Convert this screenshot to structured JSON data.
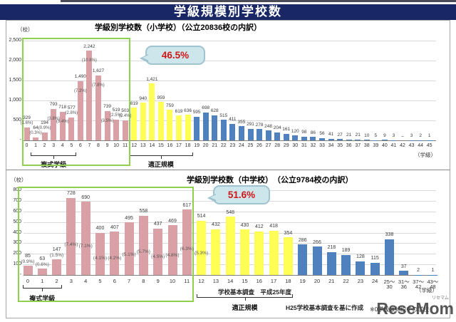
{
  "header": {
    "title": "学級規模別学校数"
  },
  "colors": {
    "pink": "#d9a0a5",
    "yellow": "#ffff55",
    "blue": "#4e81bd",
    "green_box": "#8fd14f",
    "callout_bg": "#cde6ec",
    "callout_text": "#d21616",
    "titlebar_bg": "#1a2766"
  },
  "watermark": {
    "brand": "ReseMom",
    "kana": "リセマム",
    "note": "※0学級は休校中の学校"
  },
  "chart_data": [
    {
      "type": "bar",
      "title": "学級別学校数（小学校）",
      "subtitle": "（公立20836校の内訳）",
      "y_unit": "（校）",
      "x_unit": "（学級）",
      "callout": "46.5%",
      "ylim": [
        0,
        2500
      ],
      "yticks": [
        {
          "v": 2500,
          "label": "2,500"
        },
        {
          "v": 2000,
          "label": "2,000"
        },
        {
          "v": 1500,
          "label": "1,500"
        },
        {
          "v": 1000,
          "label": "1,000"
        },
        {
          "v": 500,
          "label": "500"
        },
        {
          "v": 0,
          "label": "-"
        }
      ],
      "categories": [
        "0",
        "1",
        "2",
        "3",
        "4",
        "5",
        "6",
        "7",
        "8",
        "9",
        "10",
        "11",
        "12",
        "13",
        "14",
        "15",
        "16",
        "17",
        "18",
        "19",
        "20",
        "21",
        "22",
        "23",
        "24",
        "25",
        "26",
        "27",
        "28",
        "29",
        "30",
        "31",
        "32",
        "33",
        "34",
        "35",
        "36",
        "37",
        "38",
        "39",
        "40",
        "41",
        "42",
        "43",
        "44",
        "45"
      ],
      "values": [
        329,
        64,
        194,
        793,
        718,
        577,
        1490,
        2242,
        1627,
        739,
        519,
        503,
        819,
        940,
        1421,
        959,
        759,
        619,
        636,
        595,
        698,
        628,
        515,
        411,
        355,
        291,
        278,
        248,
        204,
        161,
        120,
        98,
        86,
        56,
        41,
        27,
        21,
        21,
        10,
        5,
        9,
        3,
        0,
        3,
        2,
        1
      ],
      "bar_labels": [
        "329",
        "64",
        "194",
        "793",
        "718",
        "577",
        "1,490",
        "2,242",
        "1,627",
        "739",
        "519",
        "503",
        "819",
        "940",
        "1,421",
        "959",
        "759",
        "619",
        "636",
        "595",
        "698",
        "628",
        "515",
        "411",
        "355",
        "291",
        "278",
        "248",
        "204",
        "161",
        "120",
        "98",
        "86",
        "56",
        "41",
        "27",
        "21",
        "21",
        "10",
        "5",
        "9",
        "3",
        "–",
        "3",
        "2",
        "1"
      ],
      "pct_labels": [
        "(1.6%)",
        "(0.3%)",
        "(0.9%)",
        "(3.8%)",
        "(3.4%)",
        "(2.8%)",
        "(7.2%)",
        "(10.8%)",
        "(7.8%)",
        "(3.5%)",
        "(2.5%)",
        "(2.4%)",
        "",
        "",
        "",
        "",
        "",
        "",
        "",
        "",
        "",
        "",
        "",
        "",
        "",
        "",
        "",
        "",
        "",
        "",
        "",
        "",
        "",
        "",
        "",
        "",
        "",
        "",
        "",
        "",
        "",
        "",
        "",
        "",
        "",
        ""
      ],
      "color_groups": [
        {
          "from": 0,
          "to": 11,
          "color": "pink"
        },
        {
          "from": 12,
          "to": 18,
          "color": "yellow"
        },
        {
          "from": 19,
          "to": 45,
          "color": "blue"
        }
      ],
      "highlight_box": {
        "from": 0,
        "to": 11
      },
      "brackets": [
        {
          "label": "複式学級",
          "from": 1,
          "to": 5
        },
        {
          "label": "適正規模",
          "from": 12,
          "to": 18
        }
      ]
    },
    {
      "type": "bar",
      "title": "学級別学校数（中学校）",
      "subtitle": "　（公立9784校の内訳）",
      "y_unit": "（校）",
      "x_unit": "（学級）",
      "callout": "51.6%",
      "ylim": [
        0,
        800
      ],
      "yticks": [
        {
          "v": 800,
          "label": "800"
        },
        {
          "v": 700,
          "label": "700"
        },
        {
          "v": 600,
          "label": "600"
        },
        {
          "v": 500,
          "label": "500"
        },
        {
          "v": 400,
          "label": "400"
        },
        {
          "v": 300,
          "label": "300"
        },
        {
          "v": 200,
          "label": "200"
        },
        {
          "v": 100,
          "label": "100"
        },
        {
          "v": 0,
          "label": "-"
        }
      ],
      "categories": [
        "0",
        "1",
        "2",
        "3",
        "4",
        "5",
        "6",
        "7",
        "8",
        "9",
        "10",
        "11",
        "12",
        "13",
        "14",
        "15",
        "16",
        "17",
        "18",
        "19",
        "20",
        "21",
        "22",
        "23",
        "24",
        "25～30",
        "31～36",
        "37～42",
        "43～48"
      ],
      "values": [
        85,
        63,
        147,
        728,
        690,
        400,
        407,
        495,
        558,
        437,
        469,
        617,
        514,
        432,
        548,
        430,
        412,
        418,
        354,
        286,
        266,
        218,
        189,
        128,
        115,
        338,
        37,
        2,
        1
      ],
      "bar_labels": [
        "85",
        "63",
        "147",
        "728",
        "690",
        "400",
        "407",
        "495",
        "558",
        "437",
        "469",
        "617",
        "514",
        "432",
        "548",
        "430",
        "412",
        "418",
        "354",
        "286",
        "266",
        "218",
        "189",
        "128",
        "115",
        "338",
        "37",
        "2",
        "1"
      ],
      "pct_labels": [
        "(0.9%)",
        "(0.6%)",
        "(1.5%)",
        "(7.4%)",
        "(7.1%)",
        "(4.1%)",
        "(4.2%)",
        "(5.1%)",
        "(5.7%)",
        "(4.5%)",
        "(4.8%)",
        "(6.3%)",
        "(5.3%)",
        "",
        "",
        "",
        "",
        "",
        "",
        "",
        "",
        "",
        "",
        "",
        "",
        "",
        "",
        "",
        ""
      ],
      "color_groups": [
        {
          "from": 0,
          "to": 11,
          "color": "pink"
        },
        {
          "from": 12,
          "to": 18,
          "color": "yellow"
        },
        {
          "from": 19,
          "to": 28,
          "color": "blue"
        }
      ],
      "highlight_box": {
        "from": 0,
        "to": 11
      },
      "brackets": [
        {
          "label": "複式学級",
          "from": 0,
          "to": 2
        },
        {
          "label": "適正規模",
          "from": 12,
          "to": 18
        }
      ],
      "notes": {
        "survey": "学校基本調査　平成25年度",
        "source": "H25学校基本調査を基に作成"
      }
    }
  ]
}
